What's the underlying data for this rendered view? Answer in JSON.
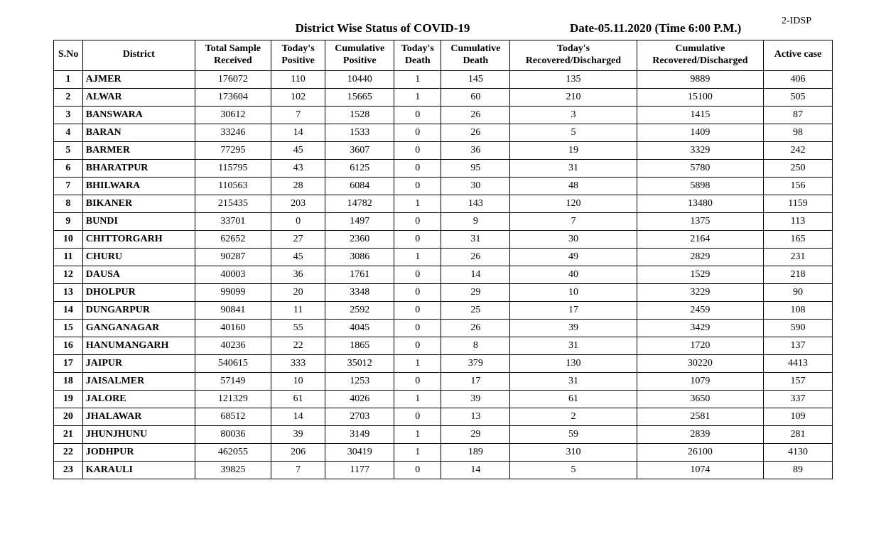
{
  "header": {
    "doc_code": "2-IDSP",
    "title": "District Wise Status of  COVID-19",
    "date_label": "Date-05.11.2020 (Time 6:00 P.M.)"
  },
  "table": {
    "columns": [
      "S.No",
      "District",
      "Total Sample Received",
      "Today's Positive",
      "Cumulative Positive",
      "Today's Death",
      "Cumulative Death",
      "Today's Recovered/Discharged",
      "Cumulative Recovered/Discharged",
      "Active  case"
    ],
    "rows": [
      [
        "1",
        "AJMER",
        "176072",
        "110",
        "10440",
        "1",
        "145",
        "135",
        "9889",
        "406"
      ],
      [
        "2",
        "ALWAR",
        "173604",
        "102",
        "15665",
        "1",
        "60",
        "210",
        "15100",
        "505"
      ],
      [
        "3",
        "BANSWARA",
        "30612",
        "7",
        "1528",
        "0",
        "26",
        "3",
        "1415",
        "87"
      ],
      [
        "4",
        "BARAN",
        "33246",
        "14",
        "1533",
        "0",
        "26",
        "5",
        "1409",
        "98"
      ],
      [
        "5",
        "BARMER",
        "77295",
        "45",
        "3607",
        "0",
        "36",
        "19",
        "3329",
        "242"
      ],
      [
        "6",
        "BHARATPUR",
        "115795",
        "43",
        "6125",
        "0",
        "95",
        "31",
        "5780",
        "250"
      ],
      [
        "7",
        "BHILWARA",
        "110563",
        "28",
        "6084",
        "0",
        "30",
        "48",
        "5898",
        "156"
      ],
      [
        "8",
        "BIKANER",
        "215435",
        "203",
        "14782",
        "1",
        "143",
        "120",
        "13480",
        "1159"
      ],
      [
        "9",
        "BUNDI",
        "33701",
        "0",
        "1497",
        "0",
        "9",
        "7",
        "1375",
        "113"
      ],
      [
        "10",
        "CHITTORGARH",
        "62652",
        "27",
        "2360",
        "0",
        "31",
        "30",
        "2164",
        "165"
      ],
      [
        "11",
        "CHURU",
        "90287",
        "45",
        "3086",
        "1",
        "26",
        "49",
        "2829",
        "231"
      ],
      [
        "12",
        "DAUSA",
        "40003",
        "36",
        "1761",
        "0",
        "14",
        "40",
        "1529",
        "218"
      ],
      [
        "13",
        "DHOLPUR",
        "99099",
        "20",
        "3348",
        "0",
        "29",
        "10",
        "3229",
        "90"
      ],
      [
        "14",
        "DUNGARPUR",
        "90841",
        "11",
        "2592",
        "0",
        "25",
        "17",
        "2459",
        "108"
      ],
      [
        "15",
        "GANGANAGAR",
        "40160",
        "55",
        "4045",
        "0",
        "26",
        "39",
        "3429",
        "590"
      ],
      [
        "16",
        "HANUMANGARH",
        "40236",
        "22",
        "1865",
        "0",
        "8",
        "31",
        "1720",
        "137"
      ],
      [
        "17",
        "JAIPUR",
        "540615",
        "333",
        "35012",
        "1",
        "379",
        "130",
        "30220",
        "4413"
      ],
      [
        "18",
        "JAISALMER",
        "57149",
        "10",
        "1253",
        "0",
        "17",
        "31",
        "1079",
        "157"
      ],
      [
        "19",
        "JALORE",
        "121329",
        "61",
        "4026",
        "1",
        "39",
        "61",
        "3650",
        "337"
      ],
      [
        "20",
        "JHALAWAR",
        "68512",
        "14",
        "2703",
        "0",
        "13",
        "2",
        "2581",
        "109"
      ],
      [
        "21",
        "JHUNJHUNU",
        "80036",
        "39",
        "3149",
        "1",
        "29",
        "59",
        "2839",
        "281"
      ],
      [
        "22",
        "JODHPUR",
        "462055",
        "206",
        "30419",
        "1",
        "189",
        "310",
        "26100",
        "4130"
      ],
      [
        "23",
        "KARAULI",
        "39825",
        "7",
        "1177",
        "0",
        "14",
        "5",
        "1074",
        "89"
      ]
    ]
  },
  "styling": {
    "background_color": "#ffffff",
    "border_color": "#000000",
    "font_family": "Times New Roman",
    "header_fontsize": 17,
    "body_fontsize": 14,
    "header_bold": true,
    "district_bold": true,
    "sno_bold": true
  }
}
